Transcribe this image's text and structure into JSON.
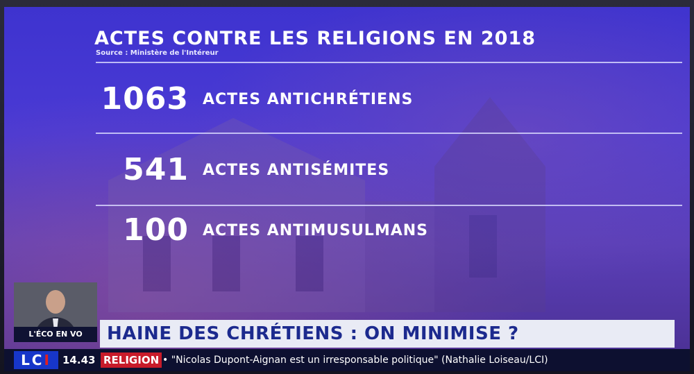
{
  "infographic": {
    "title": "ACTES CONTRE LES RELIGIONS EN 2018",
    "source": "Source : Ministère de l'Intéreur",
    "stats": [
      {
        "number": "1063",
        "label": "ACTES ANTICHRÉTIENS"
      },
      {
        "number": "541",
        "label": "ACTES ANTISÉMITES"
      },
      {
        "number": "100",
        "label": "ACTES ANTIMUSULMANS"
      }
    ]
  },
  "pip": {
    "label": "L'ÉCO EN VO"
  },
  "headline": {
    "text": "HAINE DES CHRÉTIENS : ON MINIMISE ?"
  },
  "ticker": {
    "logo_main": "LC",
    "logo_accent": "I",
    "time": "14.43",
    "topic": "RELIGION",
    "text": "• \"Nicolas Dupont-Aignan est un irresponsable politique\" (Nathalie Loiseau/LCI)"
  },
  "colors": {
    "background_blue": "#4a3ad4",
    "headline_text": "#1c2a8e",
    "ticker_topic": "#c81b2a",
    "logo_blue": "#1736c9"
  }
}
